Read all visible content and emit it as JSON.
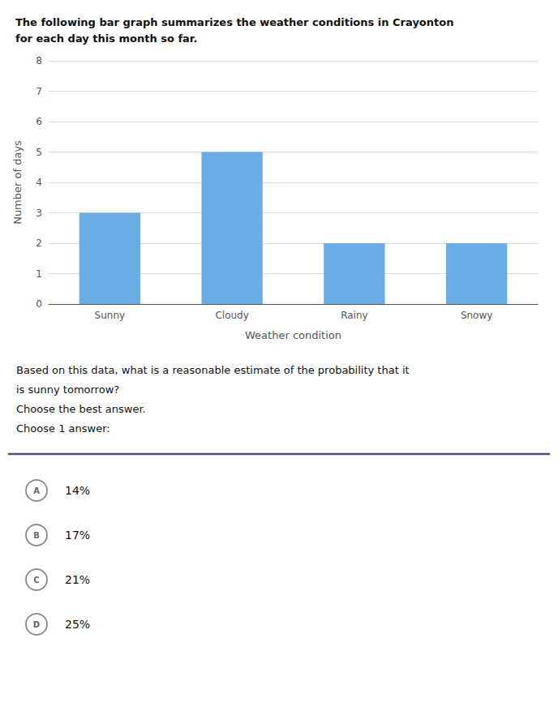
{
  "chart_data": {
    "type": "bar",
    "title": "The following bar graph summarizes the weather conditions in Crayonton\nfor each day this month so far.",
    "categories": [
      "Sunny",
      "Cloudy",
      "Rainy",
      "Snowy"
    ],
    "values": [
      3,
      5,
      2,
      2
    ],
    "color": "#6aace6",
    "xlabel": "Weather condition",
    "ylabel": "Number of days",
    "ylim": [
      0,
      8
    ],
    "yticks": [
      0,
      1,
      2,
      3,
      4,
      5,
      6,
      7,
      8
    ],
    "grid": true,
    "annotations": [
      "Based on this data, what is a reasonable estimate of the probability that it",
      "is sunny tomorrow?",
      "Choose the best answer.",
      "Choose 1 answer:",
      {
        "letter": "A",
        "text": "14%"
      },
      {
        "letter": "B",
        "text": "17%"
      },
      {
        "letter": "C",
        "text": "21%"
      },
      {
        "letter": "D",
        "text": "25%"
      }
    ]
  }
}
